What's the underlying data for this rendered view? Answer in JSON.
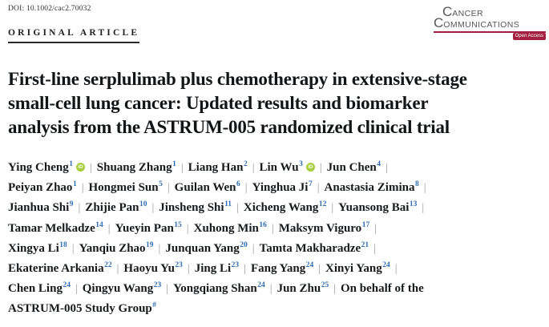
{
  "article": {
    "doi": "DOI: 10.1002/cac2.70032",
    "section_label": "ORIGINAL ARTICLE",
    "title_lines": [
      "First-line serplulimab plus chemotherapy in extensive-stage",
      "small-cell lung cancer: Updated results and biomarker",
      "analysis from the ASTRUM-005 randomized clinical trial"
    ]
  },
  "journal_logo": {
    "name_line1": {
      "initial": "C",
      "rest": "ANCER"
    },
    "name_line2": {
      "initial": "C",
      "rest": "OMMUNICATIONS"
    },
    "open_access_badge": "Open Access"
  },
  "authors": {
    "separator": "|",
    "orcid_label": "iD",
    "lines": [
      [
        {
          "name": "Ying Cheng",
          "sup": "1",
          "orcid": true,
          "sep_after": true
        },
        {
          "name": "Shuang Zhang",
          "sup": "1",
          "sep_after": true
        },
        {
          "name": "Liang Han",
          "sup": "2",
          "sep_after": true
        },
        {
          "name": "Lin Wu",
          "sup": "3",
          "orcid": true,
          "sep_after": true
        },
        {
          "name": "Jun Chen",
          "sup": "4",
          "sep_after": true
        }
      ],
      [
        {
          "name": "Peiyan Zhao",
          "sup": "1",
          "sep_after": true
        },
        {
          "name": "Hongmei Sun",
          "sup": "5",
          "sep_after": true
        },
        {
          "name": "Guilan Wen",
          "sup": "6",
          "sep_after": true
        },
        {
          "name": "Yinghua Ji",
          "sup": "7",
          "sep_after": true
        },
        {
          "name": "Anastasia Zimina",
          "sup": "8",
          "sep_after": true
        }
      ],
      [
        {
          "name": "Jianhua Shi",
          "sup": "9",
          "sep_after": true
        },
        {
          "name": "Zhijie Pan",
          "sup": "10",
          "sep_after": true
        },
        {
          "name": "Jinsheng Shi",
          "sup": "11",
          "sep_after": true
        },
        {
          "name": "Xicheng Wang",
          "sup": "12",
          "sep_after": true
        },
        {
          "name": "Yuansong Bai",
          "sup": "13",
          "sep_after": true
        }
      ],
      [
        {
          "name": "Tamar Melkadze",
          "sup": "14",
          "sep_after": true
        },
        {
          "name": "Yueyin Pan",
          "sup": "15",
          "sep_after": true
        },
        {
          "name": "Xuhong Min",
          "sup": "16",
          "sep_after": true
        },
        {
          "name": "Maksym Viguro",
          "sup": "17",
          "sep_after": true
        }
      ],
      [
        {
          "name": "Xingya Li",
          "sup": "18",
          "sep_after": true
        },
        {
          "name": "Yanqiu Zhao",
          "sup": "19",
          "sep_after": true
        },
        {
          "name": "Junquan Yang",
          "sup": "20",
          "sep_after": true
        },
        {
          "name": "Tamta Makharadze",
          "sup": "21",
          "sep_after": true
        }
      ],
      [
        {
          "name": "Ekaterine Arkania",
          "sup": "22",
          "sep_after": true
        },
        {
          "name": "Haoyu Yu",
          "sup": "23",
          "sep_after": true
        },
        {
          "name": "Jing Li",
          "sup": "23",
          "sep_after": true
        },
        {
          "name": "Fang Yang",
          "sup": "24",
          "sep_after": true
        },
        {
          "name": "Xinyi Yang",
          "sup": "24",
          "sep_after": true
        }
      ],
      [
        {
          "name": "Chen Ling",
          "sup": "24",
          "sep_after": true
        },
        {
          "name": "Qingyu Wang",
          "sup": "23",
          "sep_after": true
        },
        {
          "name": "Yongqiang Shan",
          "sup": "24",
          "sep_after": true
        },
        {
          "name": "Jun Zhu",
          "sup": "25",
          "sep_after": true
        },
        {
          "name": "On behalf of the",
          "sep_after": false
        }
      ],
      [
        {
          "name": "ASTRUM-005 Study Group",
          "sup": "#",
          "sep_after": false
        }
      ]
    ]
  },
  "colors": {
    "accent_red": "#a32040",
    "logo_gray": "#55565a",
    "superscript_blue": "#2d6cb5",
    "orcid_green": "#a6ce39",
    "text_dark": "#17191c",
    "separator_gray": "#97999b"
  }
}
